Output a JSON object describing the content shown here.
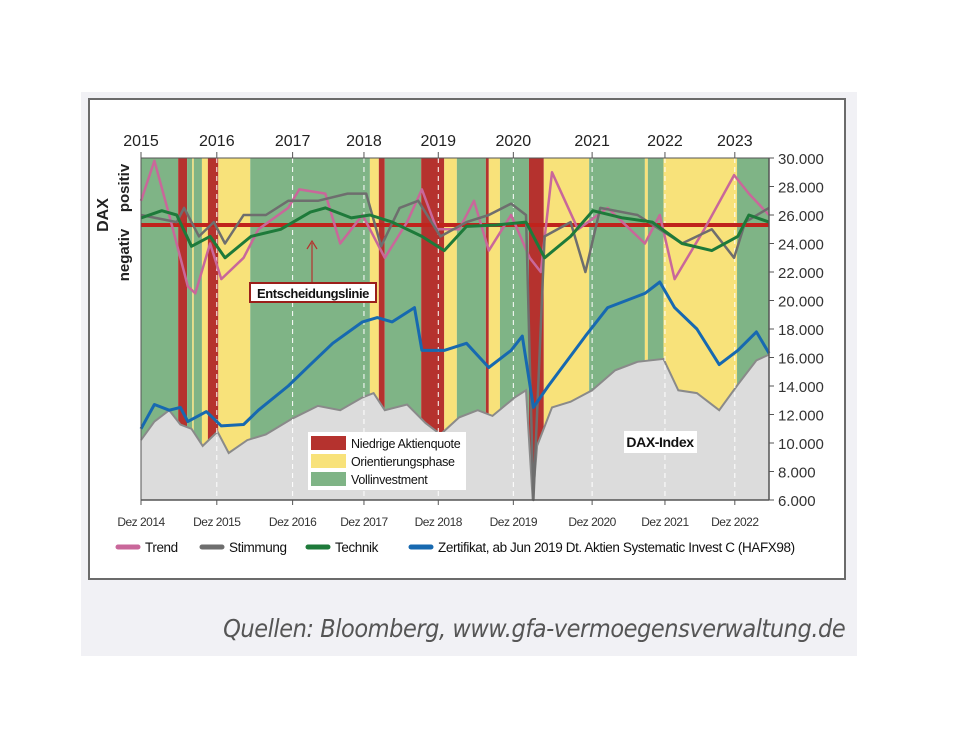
{
  "chart_data": {
    "type": "line",
    "title": "",
    "source": "Quellen: Bloomberg, www.gfa-vermoegensverwaltung.de",
    "ylabel_left": {
      "main": "DAX",
      "positive": "positiv",
      "negative": "negativ"
    },
    "ylim": [
      6000,
      30000
    ],
    "xlim": [
      2014.92,
      2023.37
    ],
    "y_ticks": [
      {
        "v": 30000,
        "label": "30.000"
      },
      {
        "v": 28000,
        "label": "28.000"
      },
      {
        "v": 26000,
        "label": "26.000"
      },
      {
        "v": 24000,
        "label": "24.000"
      },
      {
        "v": 22000,
        "label": "22.000"
      },
      {
        "v": 20000,
        "label": "20.000"
      },
      {
        "v": 18000,
        "label": "18.000"
      },
      {
        "v": 16000,
        "label": "16.000"
      },
      {
        "v": 14000,
        "label": "14.000"
      },
      {
        "v": 12000,
        "label": "12.000"
      },
      {
        "v": 10000,
        "label": "10.000"
      },
      {
        "v": 8000,
        "label": "8.000"
      },
      {
        "v": 6000,
        "label": "6.000"
      }
    ],
    "x_ticks_bottom": [
      {
        "t": 2014.92,
        "label": "Dez 2014"
      },
      {
        "t": 2015.94,
        "label": "Dez 2015"
      },
      {
        "t": 2016.96,
        "label": "Dez 2016"
      },
      {
        "t": 2017.92,
        "label": "Dez 2017"
      },
      {
        "t": 2018.92,
        "label": "Dez 2018"
      },
      {
        "t": 2019.93,
        "label": "Dez 2019"
      },
      {
        "t": 2020.99,
        "label": "Dez 2020"
      },
      {
        "t": 2021.97,
        "label": "Dez 2021"
      },
      {
        "t": 2022.91,
        "label": "Dez 2022"
      }
    ],
    "x_ticks_top": [
      {
        "t": 2014.92,
        "label": "2015"
      },
      {
        "t": 2015.94,
        "label": "2016"
      },
      {
        "t": 2016.96,
        "label": "2017"
      },
      {
        "t": 2017.92,
        "label": "2018"
      },
      {
        "t": 2018.92,
        "label": "2019"
      },
      {
        "t": 2019.93,
        "label": "2020"
      },
      {
        "t": 2020.99,
        "label": "2021"
      },
      {
        "t": 2021.97,
        "label": "2022"
      },
      {
        "t": 2022.91,
        "label": "2023"
      }
    ],
    "phase_legend": [
      {
        "key": "red",
        "label": "Niedrige Aktienquote",
        "color": "#b5322e"
      },
      {
        "key": "yellow",
        "label": "Orientierungsphase",
        "color": "#f8e27a"
      },
      {
        "key": "green",
        "label": "Vollinvestment",
        "color": "#7fb486"
      }
    ],
    "phases": [
      [
        "green",
        2014.92,
        2015.42
      ],
      [
        "red",
        2015.42,
        2015.54
      ],
      [
        "green",
        2015.54,
        2015.61
      ],
      [
        "yellow",
        2015.61,
        2015.63
      ],
      [
        "green",
        2015.63,
        2015.74
      ],
      [
        "yellow",
        2015.74,
        2015.82
      ],
      [
        "red",
        2015.82,
        2015.96
      ],
      [
        "yellow",
        2015.96,
        2016.39
      ],
      [
        "green",
        2016.39,
        2018.0
      ],
      [
        "yellow",
        2018.0,
        2018.12
      ],
      [
        "red",
        2018.12,
        2018.2
      ],
      [
        "green",
        2018.2,
        2018.69
      ],
      [
        "red",
        2018.69,
        2019.0
      ],
      [
        "yellow",
        2019.0,
        2019.17
      ],
      [
        "green",
        2019.17,
        2019.56
      ],
      [
        "red",
        2019.56,
        2019.6
      ],
      [
        "yellow",
        2019.6,
        2019.75
      ],
      [
        "green",
        2019.75,
        2020.14
      ],
      [
        "red",
        2020.14,
        2020.34
      ],
      [
        "yellow",
        2020.34,
        2020.95
      ],
      [
        "green",
        2020.95,
        2021.7
      ],
      [
        "yellow",
        2021.7,
        2021.74
      ],
      [
        "green",
        2021.74,
        2021.95
      ],
      [
        "yellow",
        2021.95,
        2022.94
      ],
      [
        "green",
        2022.94,
        2023.37
      ]
    ],
    "decision_line": {
      "label": "Entscheidungslinie",
      "value": 25300,
      "color": "#c0231c"
    },
    "dax_label": "DAX-Index",
    "dax": {
      "name": "DAX",
      "color": "#dcdcdc",
      "edge": "#8a8a8a",
      "points": [
        [
          2014.92,
          10200
        ],
        [
          2015.1,
          11500
        ],
        [
          2015.3,
          12300
        ],
        [
          2015.45,
          11300
        ],
        [
          2015.6,
          11000
        ],
        [
          2015.75,
          9800
        ],
        [
          2015.95,
          10800
        ],
        [
          2016.1,
          9300
        ],
        [
          2016.35,
          10200
        ],
        [
          2016.6,
          10600
        ],
        [
          2016.95,
          11700
        ],
        [
          2017.3,
          12600
        ],
        [
          2017.6,
          12300
        ],
        [
          2017.9,
          13200
        ],
        [
          2018.05,
          13500
        ],
        [
          2018.2,
          12300
        ],
        [
          2018.5,
          12700
        ],
        [
          2018.75,
          11400
        ],
        [
          2018.95,
          10600
        ],
        [
          2019.2,
          11800
        ],
        [
          2019.45,
          12300
        ],
        [
          2019.65,
          11900
        ],
        [
          2019.95,
          13200
        ],
        [
          2020.1,
          13700
        ],
        [
          2020.19,
          6000
        ],
        [
          2020.25,
          9800
        ],
        [
          2020.45,
          12500
        ],
        [
          2020.7,
          12900
        ],
        [
          2020.99,
          13700
        ],
        [
          2021.3,
          15100
        ],
        [
          2021.6,
          15700
        ],
        [
          2021.95,
          15900
        ],
        [
          2022.15,
          13700
        ],
        [
          2022.4,
          13500
        ],
        [
          2022.7,
          12300
        ],
        [
          2022.95,
          14100
        ],
        [
          2023.2,
          15800
        ],
        [
          2023.37,
          16200
        ]
      ]
    },
    "series": [
      {
        "name": "Trend",
        "color": "#c9679a",
        "points": [
          [
            2014.92,
            27000
          ],
          [
            2015.1,
            29800
          ],
          [
            2015.3,
            26000
          ],
          [
            2015.55,
            21000
          ],
          [
            2015.65,
            20500
          ],
          [
            2015.85,
            24000
          ],
          [
            2016.0,
            21500
          ],
          [
            2016.3,
            23000
          ],
          [
            2016.5,
            25000
          ],
          [
            2016.9,
            26500
          ],
          [
            2017.05,
            27800
          ],
          [
            2017.4,
            27500
          ],
          [
            2017.6,
            24000
          ],
          [
            2017.9,
            26000
          ],
          [
            2018.2,
            23000
          ],
          [
            2018.5,
            25500
          ],
          [
            2018.7,
            27800
          ],
          [
            2018.9,
            25000
          ],
          [
            2019.2,
            25000
          ],
          [
            2019.4,
            27000
          ],
          [
            2019.6,
            23500
          ],
          [
            2019.9,
            26000
          ],
          [
            2020.15,
            23000
          ],
          [
            2020.3,
            22000
          ],
          [
            2020.45,
            29000
          ],
          [
            2020.8,
            25000
          ],
          [
            2021.2,
            26500
          ],
          [
            2021.7,
            24000
          ],
          [
            2021.9,
            26000
          ],
          [
            2022.1,
            21500
          ],
          [
            2022.5,
            25000
          ],
          [
            2022.9,
            28800
          ],
          [
            2023.1,
            27500
          ],
          [
            2023.37,
            26000
          ]
        ]
      },
      {
        "name": "Stimmung",
        "color": "#6e6e6e",
        "points": [
          [
            2014.92,
            26000
          ],
          [
            2015.4,
            25500
          ],
          [
            2015.5,
            26500
          ],
          [
            2015.7,
            24500
          ],
          [
            2015.9,
            25500
          ],
          [
            2016.05,
            24000
          ],
          [
            2016.3,
            26000
          ],
          [
            2016.6,
            26000
          ],
          [
            2016.9,
            27000
          ],
          [
            2017.3,
            27000
          ],
          [
            2017.7,
            27500
          ],
          [
            2017.95,
            27500
          ],
          [
            2018.15,
            23800
          ],
          [
            2018.4,
            26500
          ],
          [
            2018.65,
            27000
          ],
          [
            2018.95,
            24500
          ],
          [
            2019.3,
            25500
          ],
          [
            2019.6,
            26000
          ],
          [
            2019.9,
            26800
          ],
          [
            2020.1,
            26000
          ],
          [
            2020.2,
            6000
          ],
          [
            2020.35,
            24500
          ],
          [
            2020.7,
            25500
          ],
          [
            2020.9,
            22000
          ],
          [
            2021.1,
            26500
          ],
          [
            2021.6,
            26000
          ],
          [
            2021.9,
            25000
          ],
          [
            2022.2,
            24000
          ],
          [
            2022.6,
            25000
          ],
          [
            2022.9,
            23000
          ],
          [
            2023.05,
            25500
          ],
          [
            2023.37,
            26500
          ]
        ]
      },
      {
        "name": "Technik",
        "color": "#1e7a3a",
        "points": [
          [
            2014.92,
            25800
          ],
          [
            2015.2,
            26300
          ],
          [
            2015.4,
            26000
          ],
          [
            2015.6,
            23800
          ],
          [
            2015.85,
            24500
          ],
          [
            2016.05,
            23000
          ],
          [
            2016.4,
            24500
          ],
          [
            2016.8,
            25000
          ],
          [
            2017.2,
            26200
          ],
          [
            2017.4,
            26500
          ],
          [
            2017.75,
            25800
          ],
          [
            2018.0,
            26000
          ],
          [
            2018.3,
            25500
          ],
          [
            2018.7,
            24500
          ],
          [
            2019.0,
            23500
          ],
          [
            2019.3,
            25200
          ],
          [
            2019.7,
            25300
          ],
          [
            2020.1,
            25500
          ],
          [
            2020.35,
            23000
          ],
          [
            2020.7,
            24500
          ],
          [
            2021.0,
            26300
          ],
          [
            2021.4,
            25800
          ],
          [
            2021.8,
            25500
          ],
          [
            2022.2,
            24000
          ],
          [
            2022.6,
            23500
          ],
          [
            2022.95,
            24500
          ],
          [
            2023.1,
            26000
          ],
          [
            2023.37,
            25500
          ]
        ]
      },
      {
        "name": "Zertifikat, ab Jun 2019 Dt. Aktien Systematic Invest C (HAFX98)",
        "color": "#1769b0",
        "points": [
          [
            2014.92,
            11000
          ],
          [
            2015.1,
            12700
          ],
          [
            2015.3,
            12300
          ],
          [
            2015.45,
            12500
          ],
          [
            2015.55,
            11500
          ],
          [
            2015.8,
            12200
          ],
          [
            2016.0,
            11200
          ],
          [
            2016.3,
            11300
          ],
          [
            2016.5,
            12300
          ],
          [
            2016.9,
            14000
          ],
          [
            2017.2,
            15500
          ],
          [
            2017.5,
            17000
          ],
          [
            2017.9,
            18500
          ],
          [
            2018.1,
            18800
          ],
          [
            2018.3,
            18500
          ],
          [
            2018.6,
            19500
          ],
          [
            2018.7,
            16500
          ],
          [
            2019.0,
            16500
          ],
          [
            2019.3,
            17000
          ],
          [
            2019.6,
            15300
          ],
          [
            2019.9,
            16500
          ],
          [
            2020.05,
            17500
          ],
          [
            2020.2,
            12500
          ],
          [
            2020.4,
            14000
          ],
          [
            2020.9,
            17500
          ],
          [
            2021.2,
            19500
          ],
          [
            2021.7,
            20500
          ],
          [
            2021.9,
            21300
          ],
          [
            2022.1,
            19500
          ],
          [
            2022.4,
            18000
          ],
          [
            2022.7,
            15500
          ],
          [
            2022.95,
            16500
          ],
          [
            2023.2,
            17800
          ],
          [
            2023.37,
            16300
          ]
        ]
      }
    ]
  },
  "legend_line_names": [
    "Trend",
    "Stimmung",
    "Technik",
    "Zertifikat, ab Jun 2019 Dt. Aktien Systematic Invest C (HAFX98)"
  ]
}
